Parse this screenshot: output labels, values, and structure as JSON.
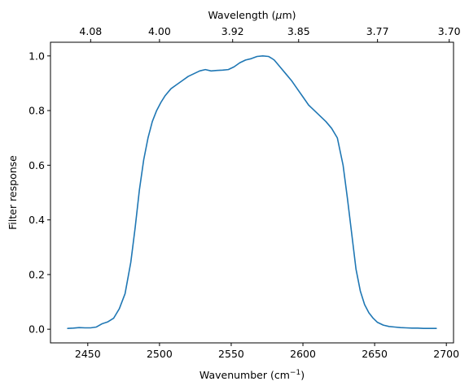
{
  "chart_data": {
    "type": "line",
    "title": "",
    "xlabel_main": "Wavenumber (cm",
    "xlabel_sup": "−1",
    "xlabel_tail": ")",
    "top_xlabel_main": "Wavelength (",
    "top_xlabel_mu": "μ",
    "top_xlabel_tail": "m)",
    "ylabel": "Filter response",
    "xlim": [
      2424,
      2705
    ],
    "ylim": [
      -0.05,
      1.05
    ],
    "x_ticks": [
      2450,
      2500,
      2550,
      2600,
      2650,
      2700
    ],
    "x_tick_labels": [
      "2450",
      "2500",
      "2550",
      "2600",
      "2650",
      "2700"
    ],
    "y_ticks": [
      0.0,
      0.2,
      0.4,
      0.6,
      0.8,
      1.0
    ],
    "y_tick_labels": [
      "0.0",
      "0.2",
      "0.4",
      "0.6",
      "0.8",
      "1.0"
    ],
    "top_ticks": [
      {
        "wavenumber": 2452,
        "label": "4.08"
      },
      {
        "wavenumber": 2500,
        "label": "4.00"
      },
      {
        "wavenumber": 2551,
        "label": "3.92"
      },
      {
        "wavenumber": 2597,
        "label": "3.85"
      },
      {
        "wavenumber": 2652,
        "label": "3.77"
      },
      {
        "wavenumber": 2702,
        "label": "3.70"
      }
    ],
    "grid": false,
    "line_color": "#1f77b4",
    "series": [
      {
        "x": [
          2436,
          2440,
          2444,
          2448,
          2452,
          2456,
          2460,
          2464,
          2468,
          2472,
          2476,
          2480,
          2483,
          2486,
          2489,
          2492,
          2495,
          2498,
          2501,
          2504,
          2508,
          2512,
          2516,
          2520,
          2524,
          2528,
          2532,
          2536,
          2540,
          2544,
          2548,
          2552,
          2556,
          2560,
          2564,
          2568,
          2572,
          2576,
          2578,
          2580,
          2584,
          2588,
          2592,
          2596,
          2600,
          2604,
          2608,
          2612,
          2616,
          2620,
          2624,
          2628,
          2631,
          2634,
          2637,
          2640,
          2643,
          2646,
          2649,
          2652,
          2656,
          2660,
          2664,
          2668,
          2672,
          2676,
          2680,
          2684,
          2688,
          2693
        ],
        "y": [
          0.003,
          0.004,
          0.006,
          0.005,
          0.005,
          0.008,
          0.02,
          0.027,
          0.04,
          0.075,
          0.13,
          0.245,
          0.37,
          0.51,
          0.62,
          0.7,
          0.76,
          0.8,
          0.83,
          0.855,
          0.88,
          0.895,
          0.91,
          0.925,
          0.935,
          0.945,
          0.95,
          0.945,
          0.947,
          0.948,
          0.95,
          0.96,
          0.975,
          0.985,
          0.99,
          0.998,
          1.0,
          0.998,
          0.992,
          0.985,
          0.96,
          0.935,
          0.91,
          0.88,
          0.85,
          0.82,
          0.8,
          0.78,
          0.76,
          0.735,
          0.7,
          0.6,
          0.48,
          0.35,
          0.22,
          0.14,
          0.09,
          0.06,
          0.04,
          0.025,
          0.015,
          0.01,
          0.008,
          0.006,
          0.005,
          0.004,
          0.004,
          0.003,
          0.003,
          0.003
        ]
      }
    ]
  }
}
